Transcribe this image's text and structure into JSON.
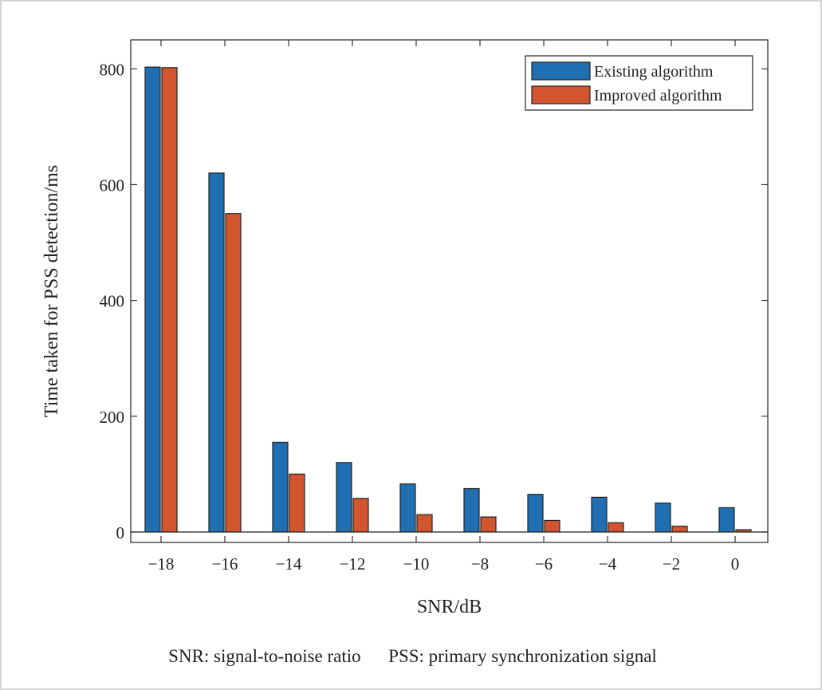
{
  "chart_data": {
    "type": "bar",
    "categories": [
      "−18",
      "−16",
      "−14",
      "−12",
      "−10",
      "−8",
      "−6",
      "−4",
      "−2",
      "0"
    ],
    "series": [
      {
        "name": "Existing algorithm",
        "color": "#1f6fb2",
        "values": [
          803,
          620,
          155,
          120,
          83,
          75,
          65,
          60,
          50,
          42
        ]
      },
      {
        "name": "Improved algorithm",
        "color": "#d35530",
        "values": [
          802,
          550,
          100,
          58,
          30,
          26,
          20,
          16,
          10,
          4
        ]
      }
    ],
    "xlabel": "SNR/dB",
    "ylabel": "Time taken for PSS detection/ms",
    "ylim": [
      -18,
      850
    ],
    "yticks": [
      0,
      200,
      400,
      600,
      800
    ],
    "grid": false,
    "legend": "top-right"
  },
  "caption": {
    "snr_note": "SNR: signal-to-noise ratio",
    "pss_note": "PSS: primary synchronization signal"
  }
}
